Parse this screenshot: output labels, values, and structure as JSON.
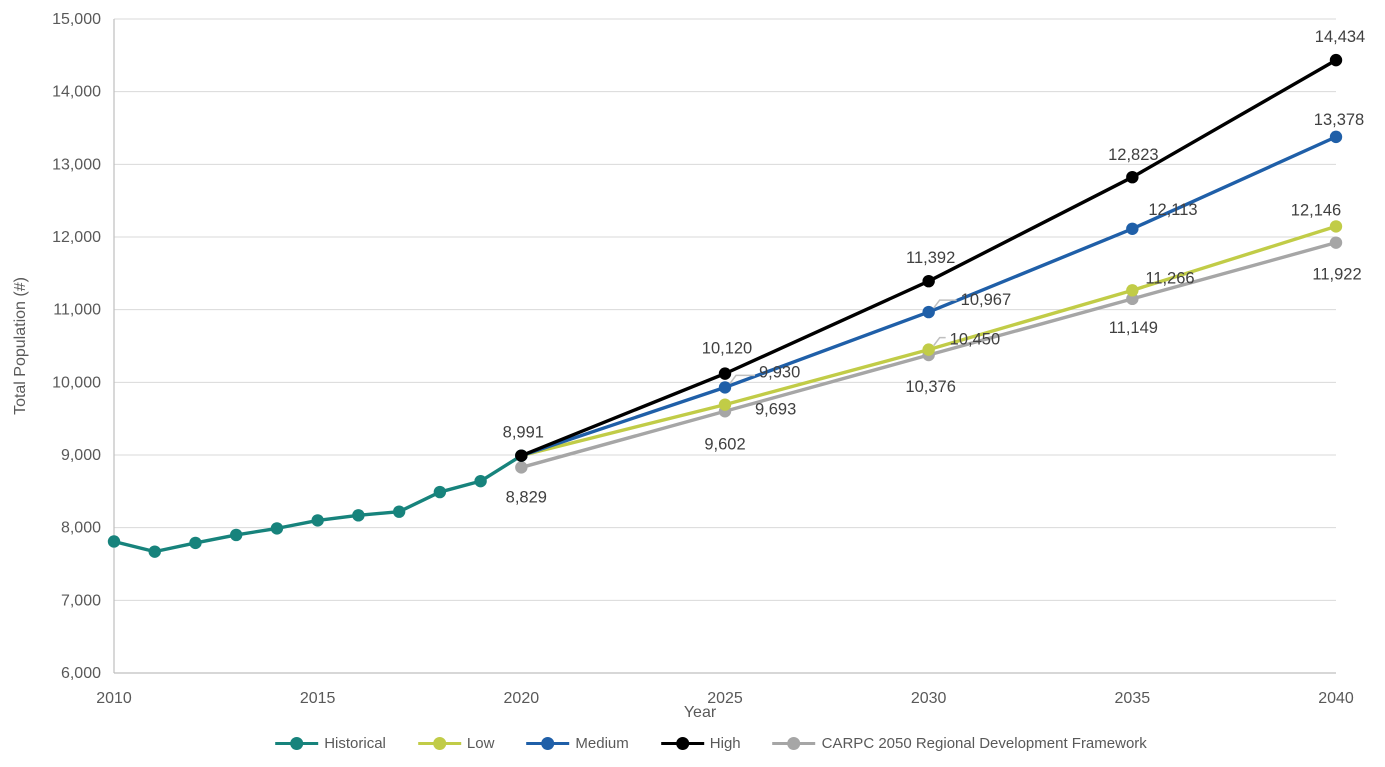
{
  "chart_data": {
    "type": "line",
    "title": "",
    "xlabel": "Year",
    "ylabel": "Total Population (#)",
    "xlim": [
      2010,
      2040
    ],
    "ylim": [
      6000,
      15000
    ],
    "grid": "horizontal",
    "legend_position": "bottom-center",
    "gridline_color": "#D9D9D9",
    "axis_line_color": "#BFBFBF",
    "axis_text_color": "#595959",
    "data_label_color": "#404040",
    "leader_line_color": "#BFBFBF",
    "yticks": [
      {
        "v": 6000,
        "label": "6,000"
      },
      {
        "v": 7000,
        "label": "7,000"
      },
      {
        "v": 8000,
        "label": "8,000"
      },
      {
        "v": 9000,
        "label": "9,000"
      },
      {
        "v": 10000,
        "label": "10,000"
      },
      {
        "v": 11000,
        "label": "11,000"
      },
      {
        "v": 12000,
        "label": "12,000"
      },
      {
        "v": 13000,
        "label": "13,000"
      },
      {
        "v": 14000,
        "label": "14,000"
      },
      {
        "v": 15000,
        "label": "15,000"
      }
    ],
    "xticks": [
      {
        "v": 2010,
        "label": "2010"
      },
      {
        "v": 2015,
        "label": "2015"
      },
      {
        "v": 2020,
        "label": "2020"
      },
      {
        "v": 2025,
        "label": "2025"
      },
      {
        "v": 2030,
        "label": "2030"
      },
      {
        "v": 2035,
        "label": "2035"
      },
      {
        "v": 2040,
        "label": "2040"
      }
    ],
    "legend_order": [
      "Historical",
      "Low",
      "Medium",
      "High",
      "CARPC 2050 Regional Development Framework"
    ],
    "series": [
      {
        "name": "CARPC 2050 Regional Development Framework",
        "color": "#A6A6A6",
        "points": [
          {
            "x": 2020,
            "y": 8829,
            "label": "8,829",
            "dx": 5,
            "dy": 35,
            "anchor": "middle"
          },
          {
            "x": 2025,
            "y": 9602,
            "label": "9,602",
            "dx": 0,
            "dy": 38,
            "anchor": "middle"
          },
          {
            "x": 2030,
            "y": 10376,
            "label": "10,376",
            "dx": 2,
            "dy": 37,
            "anchor": "middle"
          },
          {
            "x": 2035,
            "y": 11149,
            "label": "11,149",
            "dx": 1,
            "dy": 34,
            "anchor": "middle"
          },
          {
            "x": 2040,
            "y": 11922,
            "label": "11,922",
            "dx": 1,
            "dy": 37,
            "anchor": "middle"
          }
        ]
      },
      {
        "name": "Historical",
        "color": "#17837C",
        "points": [
          {
            "x": 2010,
            "y": 7810
          },
          {
            "x": 2011,
            "y": 7670
          },
          {
            "x": 2012,
            "y": 7790
          },
          {
            "x": 2013,
            "y": 7900
          },
          {
            "x": 2014,
            "y": 7990
          },
          {
            "x": 2015,
            "y": 8100
          },
          {
            "x": 2016,
            "y": 8170
          },
          {
            "x": 2017,
            "y": 8220
          },
          {
            "x": 2018,
            "y": 8490
          },
          {
            "x": 2019,
            "y": 8640
          },
          {
            "x": 2020,
            "y": 8991
          }
        ]
      },
      {
        "name": "Low",
        "color": "#C1CC47",
        "points": [
          {
            "x": 2020,
            "y": 8991
          },
          {
            "x": 2025,
            "y": 9693,
            "label": "9,693",
            "dx": 30,
            "dy": 10,
            "anchor": "start"
          },
          {
            "x": 2030,
            "y": 10450,
            "label": "10,450",
            "dx": 21,
            "dy": -5,
            "anchor": "start",
            "leader": true
          },
          {
            "x": 2035,
            "y": 11266,
            "label": "11,266",
            "dx": 13,
            "dy": -7,
            "anchor": "start"
          },
          {
            "x": 2040,
            "y": 12146,
            "label": "12,146",
            "dx": -20,
            "dy": -11,
            "anchor": "middle"
          }
        ]
      },
      {
        "name": "Medium",
        "color": "#1F5FA8",
        "points": [
          {
            "x": 2020,
            "y": 8991
          },
          {
            "x": 2025,
            "y": 9930,
            "label": "9,930",
            "dx": 34,
            "dy": -10,
            "anchor": "start",
            "leader": true
          },
          {
            "x": 2030,
            "y": 10967,
            "label": "10,967",
            "dx": 32,
            "dy": -7,
            "anchor": "start",
            "leader": true
          },
          {
            "x": 2035,
            "y": 12113,
            "label": "12,113",
            "dx": 16,
            "dy": -14,
            "anchor": "start"
          },
          {
            "x": 2040,
            "y": 13378,
            "label": "13,378",
            "dx": 3,
            "dy": -12,
            "anchor": "middle"
          }
        ]
      },
      {
        "name": "High",
        "color": "#000000",
        "points": [
          {
            "x": 2020,
            "y": 8991,
            "label": "8,991",
            "dx": 2,
            "dy": -18,
            "anchor": "middle"
          },
          {
            "x": 2025,
            "y": 10120,
            "label": "10,120",
            "dx": 2,
            "dy": -20,
            "anchor": "middle"
          },
          {
            "x": 2030,
            "y": 11392,
            "label": "11,392",
            "dx": 2,
            "dy": -18,
            "anchor": "middle"
          },
          {
            "x": 2035,
            "y": 12823,
            "label": "12,823",
            "dx": 1,
            "dy": -17,
            "anchor": "middle"
          },
          {
            "x": 2040,
            "y": 14434,
            "label": "14,434",
            "dx": 4,
            "dy": -18,
            "anchor": "middle"
          }
        ]
      }
    ]
  }
}
